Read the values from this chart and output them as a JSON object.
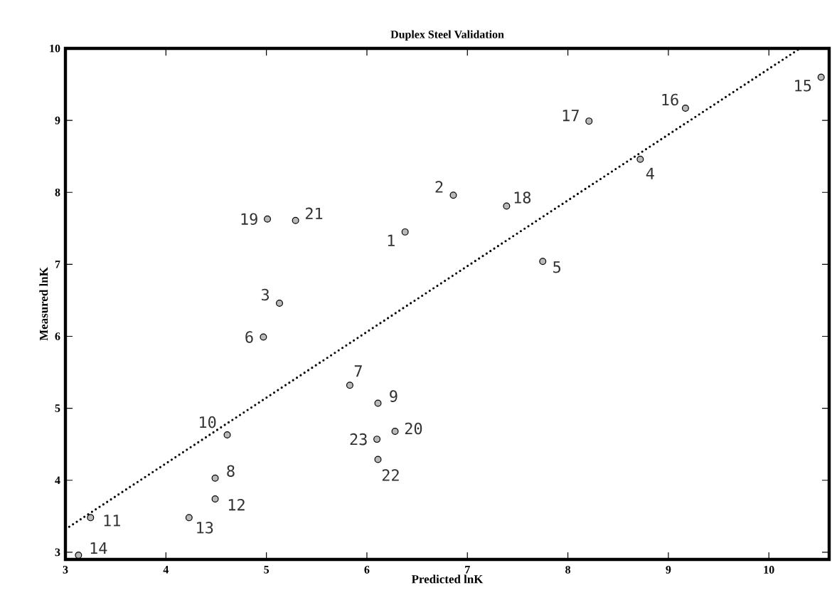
{
  "chart_data": {
    "type": "scatter",
    "title": "Duplex Steel Validation",
    "xlabel": "Predicted lnK",
    "ylabel": "Measured lnK",
    "xlim": [
      3,
      10.6
    ],
    "ylim": [
      2.9,
      10
    ],
    "xticks": [
      3,
      4,
      5,
      6,
      7,
      8,
      9,
      10
    ],
    "yticks": [
      3,
      4,
      5,
      6,
      7,
      8,
      9,
      10
    ],
    "grid": false,
    "series": [
      {
        "color": "#000000",
        "marker": "circle",
        "x": [
          6.38,
          6.86,
          5.13,
          8.72,
          7.75,
          4.97,
          5.83,
          4.49,
          6.11,
          4.61,
          3.25,
          4.49,
          4.23,
          3.13,
          10.52,
          9.17,
          8.21,
          7.39,
          5.01,
          6.28,
          5.29,
          6.11,
          6.1
        ],
        "values": [
          7.45,
          7.96,
          6.46,
          8.46,
          7.04,
          5.99,
          5.32,
          4.03,
          5.07,
          4.63,
          3.48,
          3.74,
          3.48,
          2.96,
          9.6,
          9.17,
          8.99,
          7.81,
          7.63,
          4.68,
          7.61,
          4.29,
          4.57
        ]
      },
      {
        "type": "line",
        "color": "#000000",
        "line_style": "dotted",
        "marker": "none",
        "x": [
          3,
          10.31
        ],
        "values": [
          3.32,
          10
        ]
      }
    ],
    "annotations": [
      {
        "text": "1",
        "x": 6.38,
        "y": 7.45
      },
      {
        "text": "2",
        "x": 6.86,
        "y": 7.96
      },
      {
        "text": "3",
        "x": 5.13,
        "y": 6.46
      },
      {
        "text": "4",
        "x": 8.72,
        "y": 8.46
      },
      {
        "text": "5",
        "x": 7.75,
        "y": 7.04
      },
      {
        "text": "6",
        "x": 4.97,
        "y": 5.99
      },
      {
        "text": "7",
        "x": 5.83,
        "y": 5.32
      },
      {
        "text": "8",
        "x": 4.49,
        "y": 4.03
      },
      {
        "text": "9",
        "x": 6.11,
        "y": 5.07
      },
      {
        "text": "10",
        "x": 4.61,
        "y": 4.63
      },
      {
        "text": "11",
        "x": 3.25,
        "y": 3.48
      },
      {
        "text": "12",
        "x": 4.49,
        "y": 3.74
      },
      {
        "text": "13",
        "x": 4.23,
        "y": 3.48
      },
      {
        "text": "14",
        "x": 3.13,
        "y": 2.96
      },
      {
        "text": "15",
        "x": 10.52,
        "y": 9.6
      },
      {
        "text": "16",
        "x": 9.17,
        "y": 9.17
      },
      {
        "text": "17",
        "x": 8.21,
        "y": 8.99
      },
      {
        "text": "18",
        "x": 7.39,
        "y": 7.81
      },
      {
        "text": "19",
        "x": 5.01,
        "y": 7.63
      },
      {
        "text": "20",
        "x": 6.28,
        "y": 4.68
      },
      {
        "text": "21",
        "x": 5.29,
        "y": 7.61
      },
      {
        "text": "22",
        "x": 6.11,
        "y": 4.29
      },
      {
        "text": "23",
        "x": 6.1,
        "y": 4.57
      }
    ]
  }
}
